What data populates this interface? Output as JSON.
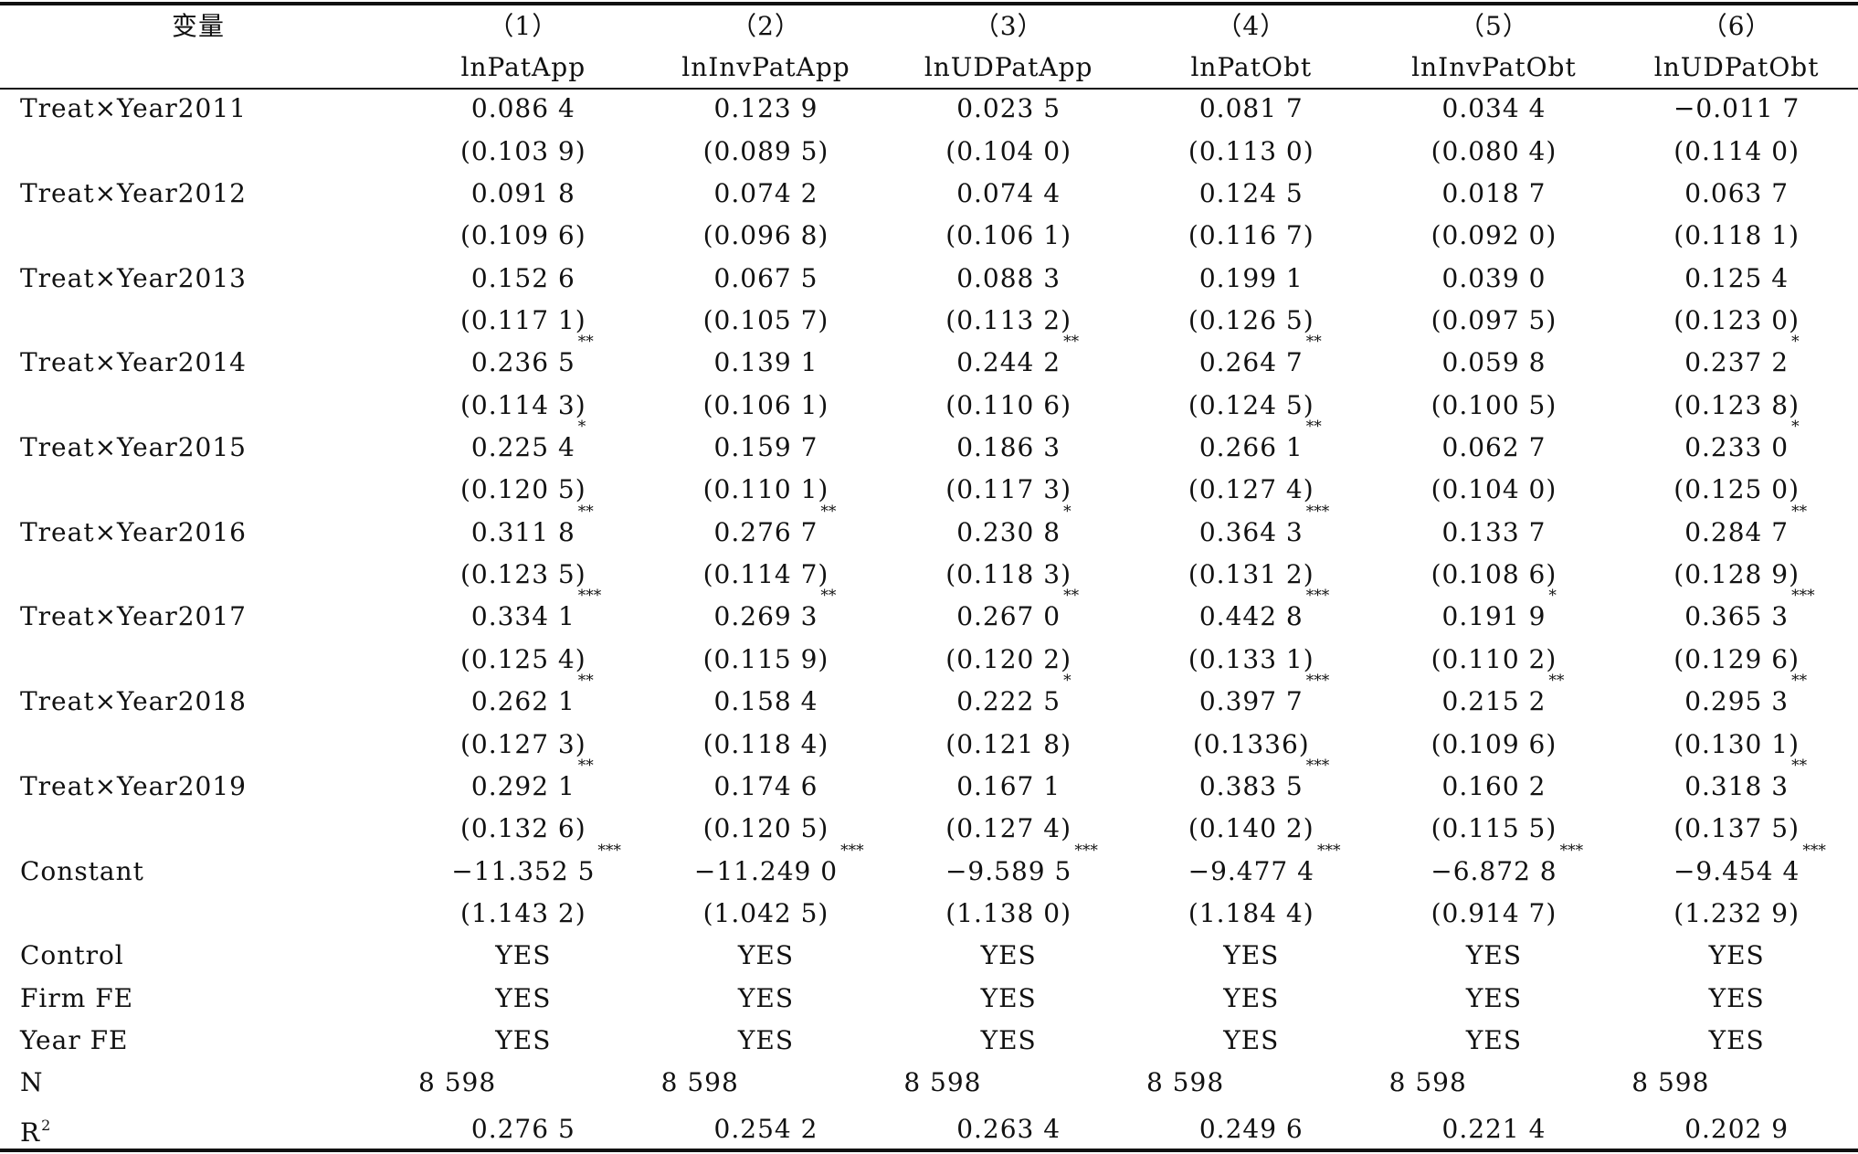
{
  "header": {
    "var_label": "变量",
    "col_numbers": [
      "（1）",
      "（2）",
      "（3）",
      "（4）",
      "（5）",
      "（6）"
    ],
    "col_names": [
      "lnPatApp",
      "lnInvPatApp",
      "lnUDPatApp",
      "lnPatObt",
      "lnInvPatObt",
      "lnUDPatObt"
    ]
  },
  "rows": [
    {
      "label": "Treat×Year2011",
      "coefs": [
        {
          "v": "0.086 4",
          "s": ""
        },
        {
          "v": "0.123 9",
          "s": ""
        },
        {
          "v": "0.023 5",
          "s": ""
        },
        {
          "v": "0.081 7",
          "s": ""
        },
        {
          "v": "0.034 4",
          "s": ""
        },
        {
          "v": "−0.011 7",
          "s": ""
        }
      ],
      "ses": [
        "(0.103 9)",
        "(0.089 5)",
        "(0.104 0)",
        "(0.113 0)",
        "(0.080 4)",
        "(0.114 0)"
      ]
    },
    {
      "label": "Treat×Year2012",
      "coefs": [
        {
          "v": "0.091 8",
          "s": ""
        },
        {
          "v": "0.074 2",
          "s": ""
        },
        {
          "v": "0.074 4",
          "s": ""
        },
        {
          "v": "0.124 5",
          "s": ""
        },
        {
          "v": "0.018 7",
          "s": ""
        },
        {
          "v": "0.063 7",
          "s": ""
        }
      ],
      "ses": [
        "(0.109 6)",
        "(0.096 8)",
        "(0.106 1)",
        "(0.116 7)",
        "(0.092 0)",
        "(0.118 1)"
      ]
    },
    {
      "label": "Treat×Year2013",
      "coefs": [
        {
          "v": "0.152 6",
          "s": ""
        },
        {
          "v": "0.067 5",
          "s": ""
        },
        {
          "v": "0.088 3",
          "s": ""
        },
        {
          "v": "0.199 1",
          "s": ""
        },
        {
          "v": "0.039 0",
          "s": ""
        },
        {
          "v": "0.125 4",
          "s": ""
        }
      ],
      "ses": [
        "(0.117 1)",
        "(0.105 7)",
        "(0.113 2)",
        "(0.126 5)",
        "(0.097 5)",
        "(0.123 0)"
      ]
    },
    {
      "label": "Treat×Year2014",
      "coefs": [
        {
          "v": "0.236 5",
          "s": "**"
        },
        {
          "v": "0.139 1",
          "s": ""
        },
        {
          "v": "0.244 2",
          "s": "**"
        },
        {
          "v": "0.264 7",
          "s": "**"
        },
        {
          "v": "0.059 8",
          "s": ""
        },
        {
          "v": "0.237 2",
          "s": "*"
        }
      ],
      "ses": [
        "(0.114 3)",
        "(0.106 1)",
        "(0.110 6)",
        "(0.124 5)",
        "(0.100 5)",
        "(0.123 8)"
      ]
    },
    {
      "label": "Treat×Year2015",
      "coefs": [
        {
          "v": "0.225 4",
          "s": "*"
        },
        {
          "v": "0.159 7",
          "s": ""
        },
        {
          "v": "0.186 3",
          "s": ""
        },
        {
          "v": "0.266 1",
          "s": "**"
        },
        {
          "v": "0.062 7",
          "s": ""
        },
        {
          "v": "0.233 0",
          "s": "*"
        }
      ],
      "ses": [
        "(0.120 5)",
        "(0.110 1)",
        "(0.117 3)",
        "(0.127 4)",
        "(0.104 0)",
        "(0.125 0)"
      ]
    },
    {
      "label": "Treat×Year2016",
      "coefs": [
        {
          "v": "0.311 8",
          "s": "**"
        },
        {
          "v": "0.276 7",
          "s": "**"
        },
        {
          "v": "0.230 8",
          "s": "*"
        },
        {
          "v": "0.364 3",
          "s": "***"
        },
        {
          "v": "0.133 7",
          "s": ""
        },
        {
          "v": "0.284 7",
          "s": "**"
        }
      ],
      "ses": [
        "(0.123 5)",
        "(0.114 7)",
        "(0.118 3)",
        "(0.131 2)",
        "(0.108 6)",
        "(0.128 9)"
      ]
    },
    {
      "label": "Treat×Year2017",
      "coefs": [
        {
          "v": "0.334 1",
          "s": "***"
        },
        {
          "v": "0.269 3",
          "s": "**"
        },
        {
          "v": "0.267 0",
          "s": "**"
        },
        {
          "v": "0.442 8",
          "s": "***"
        },
        {
          "v": "0.191 9",
          "s": "*"
        },
        {
          "v": "0.365 3",
          "s": "***"
        }
      ],
      "ses": [
        "(0.125 4)",
        "(0.115 9)",
        "(0.120 2)",
        "(0.133 1)",
        "(0.110 2)",
        "(0.129 6)"
      ]
    },
    {
      "label": "Treat×Year2018",
      "coefs": [
        {
          "v": "0.262 1",
          "s": "**"
        },
        {
          "v": "0.158 4",
          "s": ""
        },
        {
          "v": "0.222 5",
          "s": "*"
        },
        {
          "v": "0.397 7",
          "s": "***"
        },
        {
          "v": "0.215 2",
          "s": "**"
        },
        {
          "v": "0.295 3",
          "s": "**"
        }
      ],
      "ses": [
        "(0.127 3)",
        "(0.118 4)",
        "(0.121 8)",
        "(0.1336)",
        "(0.109 6)",
        "(0.130 1)"
      ]
    },
    {
      "label": "Treat×Year2019",
      "coefs": [
        {
          "v": "0.292 1",
          "s": "**"
        },
        {
          "v": "0.174 6",
          "s": ""
        },
        {
          "v": "0.167 1",
          "s": ""
        },
        {
          "v": "0.383 5",
          "s": "***"
        },
        {
          "v": "0.160 2",
          "s": ""
        },
        {
          "v": "0.318 3",
          "s": "**"
        }
      ],
      "ses": [
        "(0.132 6)",
        "(0.120 5)",
        "(0.127 4)",
        "(0.140 2)",
        "(0.115 5)",
        "(0.137 5)"
      ]
    },
    {
      "label": "Constant",
      "coefs": [
        {
          "v": "−11.352 5",
          "s": "***"
        },
        {
          "v": "−11.249 0",
          "s": "***"
        },
        {
          "v": "−9.589 5",
          "s": "***"
        },
        {
          "v": "−9.477 4",
          "s": "***"
        },
        {
          "v": "−6.872 8",
          "s": "***"
        },
        {
          "v": "−9.454 4",
          "s": "***"
        }
      ],
      "ses": [
        "(1.143 2)",
        "(1.042 5)",
        "(1.138 0)",
        "(1.184 4)",
        "(0.914 7)",
        "(1.232 9)"
      ]
    }
  ],
  "controls": [
    {
      "label": "Control",
      "values": [
        "YES",
        "YES",
        "YES",
        "YES",
        "YES",
        "YES"
      ]
    },
    {
      "label": "Firm FE",
      "values": [
        "YES",
        "YES",
        "YES",
        "YES",
        "YES",
        "YES"
      ]
    },
    {
      "label": "Year FE",
      "values": [
        "YES",
        "YES",
        "YES",
        "YES",
        "YES",
        "YES"
      ]
    }
  ],
  "n_row": {
    "label": "N",
    "values": [
      "8 598",
      "8 598",
      "8 598",
      "8 598",
      "8 598",
      "8 598"
    ]
  },
  "r2_row": {
    "label": "R",
    "label_sup": "2",
    "values": [
      "0.276 5",
      "0.254 2",
      "0.263 4",
      "0.249 6",
      "0.221 4",
      "0.202 9"
    ]
  }
}
